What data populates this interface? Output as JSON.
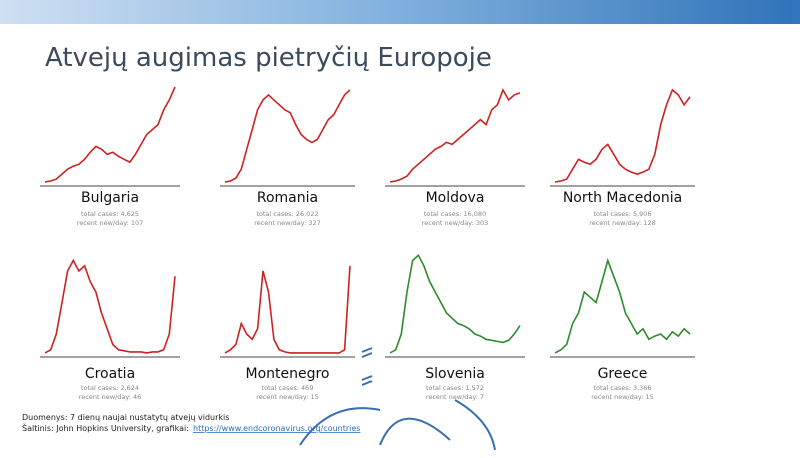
{
  "title": "Atvejų augimas pietryčių Europoje",
  "chart_data": [
    {
      "type": "line",
      "title": "Bulgaria",
      "annotations": [
        "total cases: 4,625",
        "recent new/day: 107"
      ],
      "color": "#cc2222",
      "ylim": [
        0,
        100
      ],
      "values": [
        2,
        3,
        5,
        10,
        15,
        18,
        20,
        25,
        32,
        38,
        35,
        30,
        32,
        28,
        25,
        22,
        30,
        40,
        50,
        55,
        60,
        75,
        85,
        98
      ]
    },
    {
      "type": "line",
      "title": "Romania",
      "annotations": [
        "total cases: 26,022",
        "recent new/day: 327"
      ],
      "color": "#cc2222",
      "ylim": [
        0,
        100
      ],
      "values": [
        2,
        3,
        6,
        15,
        35,
        55,
        75,
        85,
        90,
        85,
        80,
        75,
        72,
        60,
        50,
        45,
        42,
        45,
        55,
        65,
        70,
        80,
        90,
        95
      ]
    },
    {
      "type": "line",
      "title": "Moldova",
      "annotations": [
        "total cases: 16,080",
        "recent new/day: 303"
      ],
      "color": "#cc2222",
      "ylim": [
        0,
        100
      ],
      "values": [
        2,
        3,
        5,
        8,
        15,
        20,
        25,
        30,
        35,
        38,
        42,
        40,
        45,
        50,
        55,
        60,
        65,
        60,
        75,
        80,
        95,
        85,
        90,
        92
      ]
    },
    {
      "type": "line",
      "title": "North Macedonia",
      "annotations": [
        "total cases: 5,906",
        "recent new/day: 128"
      ],
      "color": "#cc2222",
      "ylim": [
        0,
        100
      ],
      "values": [
        2,
        3,
        5,
        15,
        25,
        22,
        20,
        25,
        35,
        40,
        30,
        20,
        15,
        12,
        10,
        12,
        15,
        30,
        60,
        80,
        95,
        90,
        80,
        88
      ]
    },
    {
      "type": "line",
      "title": "Croatia",
      "annotations": [
        "total cases: 2,624",
        "recent new/day: 46"
      ],
      "color": "#cc2222",
      "ylim": [
        0,
        100
      ],
      "values": [
        2,
        5,
        20,
        50,
        80,
        90,
        80,
        85,
        70,
        60,
        40,
        25,
        10,
        5,
        4,
        3,
        3,
        3,
        2,
        3,
        3,
        5,
        20,
        75
      ]
    },
    {
      "type": "line",
      "title": "Montenegro",
      "annotations": [
        "total cases: 469",
        "recent new/day: 15"
      ],
      "color": "#cc2222",
      "ylim": [
        0,
        100
      ],
      "values": [
        2,
        5,
        10,
        30,
        20,
        15,
        25,
        80,
        60,
        15,
        5,
        3,
        2,
        2,
        2,
        2,
        2,
        2,
        2,
        2,
        2,
        2,
        5,
        85
      ]
    },
    {
      "type": "line",
      "title": "Slovenia",
      "annotations": [
        "total cases: 1,572",
        "recent new/day: 7"
      ],
      "color": "#2e8b2e",
      "ylim": [
        0,
        100
      ],
      "values": [
        2,
        5,
        20,
        60,
        90,
        95,
        85,
        70,
        60,
        50,
        40,
        35,
        30,
        28,
        25,
        20,
        18,
        15,
        14,
        13,
        12,
        14,
        20,
        28
      ]
    },
    {
      "type": "line",
      "title": "Greece",
      "annotations": [
        "total cases: 3,366",
        "recent new/day: 15"
      ],
      "color": "#2e8b2e",
      "ylim": [
        0,
        100
      ],
      "values": [
        2,
        5,
        10,
        30,
        40,
        60,
        55,
        50,
        70,
        90,
        75,
        60,
        40,
        30,
        20,
        25,
        15,
        18,
        20,
        15,
        22,
        18,
        25,
        20
      ]
    }
  ],
  "footer": {
    "note": "Duomenys: 7 dienų naujai nustatytų atvejų vidurkis",
    "source": "Šaltinis: John Hopkins University, grafikai:",
    "link": "https://www.endcoronavirus.org/countries"
  }
}
